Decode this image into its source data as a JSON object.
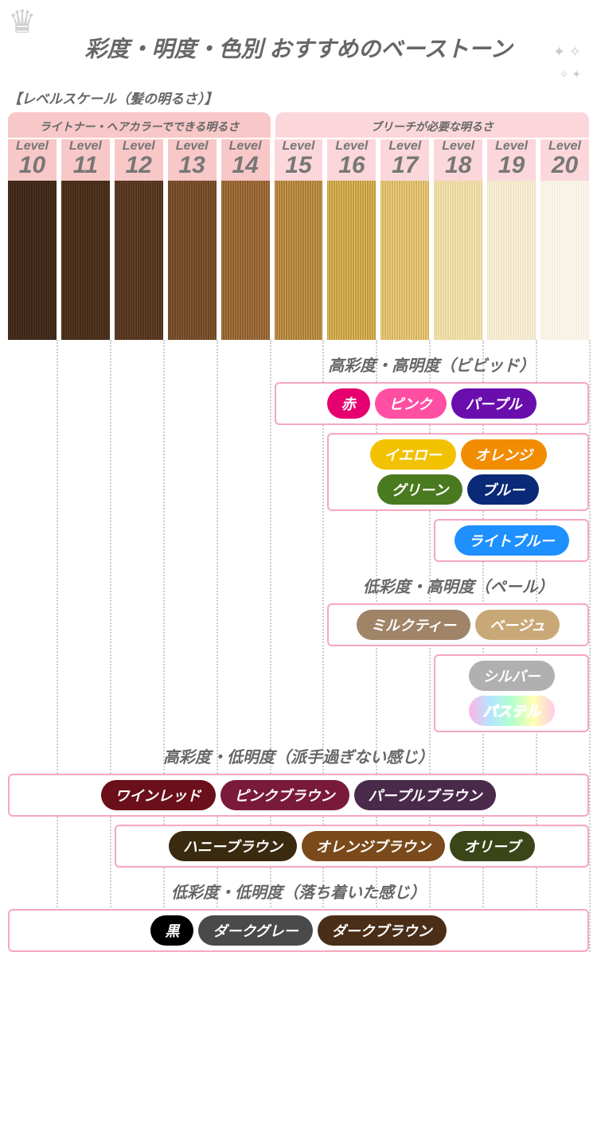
{
  "title": "彩度・明度・色別 おすすめのベーストーン",
  "subtitle": "【レベルスケール（髪の明るさ）】",
  "groups": [
    {
      "label": "ライトナー・ヘアカラーでできる明るさ",
      "span": 5,
      "bg": "#f8c7c7"
    },
    {
      "label": "ブリーチが必要な明るさ",
      "span": 6,
      "bg": "#fbd7db"
    }
  ],
  "levels": [
    {
      "n": "10",
      "cls": "a",
      "swatch": [
        "#3b2518",
        "#4f331f"
      ]
    },
    {
      "n": "11",
      "cls": "a",
      "swatch": [
        "#432b1a",
        "#5a3a22"
      ]
    },
    {
      "n": "12",
      "cls": "a",
      "swatch": [
        "#4e321e",
        "#6a4528"
      ]
    },
    {
      "n": "13",
      "cls": "a",
      "swatch": [
        "#6a4526",
        "#8a5d34"
      ]
    },
    {
      "n": "14",
      "cls": "a",
      "swatch": [
        "#8a5d30",
        "#b07d42"
      ]
    },
    {
      "n": "15",
      "cls": "b",
      "swatch": [
        "#a97a38",
        "#caa054"
      ]
    },
    {
      "n": "16",
      "cls": "b",
      "swatch": [
        "#c29a3e",
        "#ddbf66"
      ]
    },
    {
      "n": "17",
      "cls": "b",
      "swatch": [
        "#d4b362",
        "#eed489"
      ]
    },
    {
      "n": "18",
      "cls": "b",
      "swatch": [
        "#e8d398",
        "#f4e8c2"
      ]
    },
    {
      "n": "19",
      "cls": "b",
      "swatch": [
        "#f0e4c4",
        "#faf3e2"
      ]
    },
    {
      "n": "20",
      "cls": "b",
      "swatch": [
        "#f6efe0",
        "#fdf9f0"
      ]
    }
  ],
  "level_label": "Level",
  "total_cols": 11,
  "sections": [
    {
      "title": "高彩度・高明度（ビビッド）",
      "title_start": 5,
      "rows": [
        {
          "start": 5,
          "pills": [
            {
              "t": "赤",
              "bg": "#e6006f"
            },
            {
              "t": "ピンク",
              "bg": "#ff4fa3"
            },
            {
              "t": "パープル",
              "bg": "#6a0dad"
            }
          ]
        },
        {
          "start": 6,
          "pills": [
            {
              "t": "イエロー",
              "bg": "#f2c200"
            },
            {
              "t": "オレンジ",
              "bg": "#f28c00"
            },
            {
              "t": "グリーン",
              "bg": "#4a7a1f"
            },
            {
              "t": "ブルー",
              "bg": "#0a2a78"
            }
          ]
        },
        {
          "start": 8,
          "pills": [
            {
              "t": "ライトブルー",
              "bg": "#1e90ff"
            }
          ]
        }
      ]
    },
    {
      "title": "低彩度・高明度（ペール）",
      "title_start": 6,
      "rows": [
        {
          "start": 6,
          "pills": [
            {
              "t": "ミルクティー",
              "bg": "#a08468"
            },
            {
              "t": "ベージュ",
              "bg": "#c9a877"
            }
          ]
        },
        {
          "start": 8,
          "pills": [
            {
              "t": "シルバー",
              "bg": "#b0b0b0"
            },
            {
              "t": "パステル",
              "bg": "pastel",
              "stroke": true
            }
          ]
        }
      ]
    },
    {
      "title": "高彩度・低明度（派手過ぎない感じ）",
      "title_start": 0,
      "rows": [
        {
          "start": 0,
          "pills": [
            {
              "t": "ワインレッド",
              "bg": "#6b0f1a"
            },
            {
              "t": "ピンクブラウン",
              "bg": "#7a1a3a"
            },
            {
              "t": "パープルブラウン",
              "bg": "#4a2a4a"
            }
          ]
        },
        {
          "start": 2,
          "pills": [
            {
              "t": "ハニーブラウン",
              "bg": "#3a2a10"
            },
            {
              "t": "オレンジブラウン",
              "bg": "#7a4a1a"
            },
            {
              "t": "オリーブ",
              "bg": "#3a4518"
            }
          ]
        }
      ]
    },
    {
      "title": "低彩度・低明度（落ち着いた感じ）",
      "title_start": 0,
      "rows": [
        {
          "start": 0,
          "pills": [
            {
              "t": "黒",
              "bg": "#000000"
            },
            {
              "t": "ダークグレー",
              "bg": "#4a4a4a"
            },
            {
              "t": "ダークブラウン",
              "bg": "#4a2e18"
            }
          ]
        }
      ]
    }
  ]
}
